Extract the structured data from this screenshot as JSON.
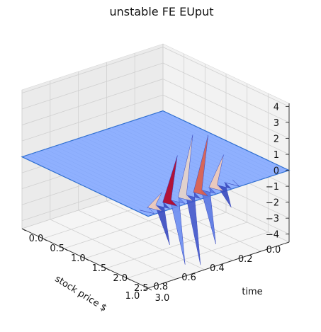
{
  "chart_data": {
    "type": "surface3d",
    "title": "unstable FE EUput",
    "xlabel": "stock price $",
    "ylabel": "time",
    "zlabel": "",
    "xlim": [
      0,
      1
    ],
    "ylim": [
      0,
      3
    ],
    "zlim": [
      -4.5,
      4.2
    ],
    "x_ticks": [
      "0.0",
      "0.2",
      "0.4",
      "0.6",
      "0.8",
      "1.0"
    ],
    "y_ticks": [
      "0.0",
      "0.5",
      "1.0",
      "1.5",
      "2.0",
      "2.5",
      "3.0"
    ],
    "z_ticks": [
      "4",
      "3",
      "2",
      "1",
      "0",
      "−1",
      "−2",
      "−3",
      "−4"
    ],
    "colormap": "coolwarm",
    "surface_color": "#8fb0fe",
    "edge_color": "#2f6fd0",
    "surface_value": 0,
    "oscillation": {
      "time_from": 2.2,
      "time_to": 3.0,
      "stock_from": 0.35,
      "stock_to": 0.95,
      "max_amplitude": 4.2
    }
  }
}
